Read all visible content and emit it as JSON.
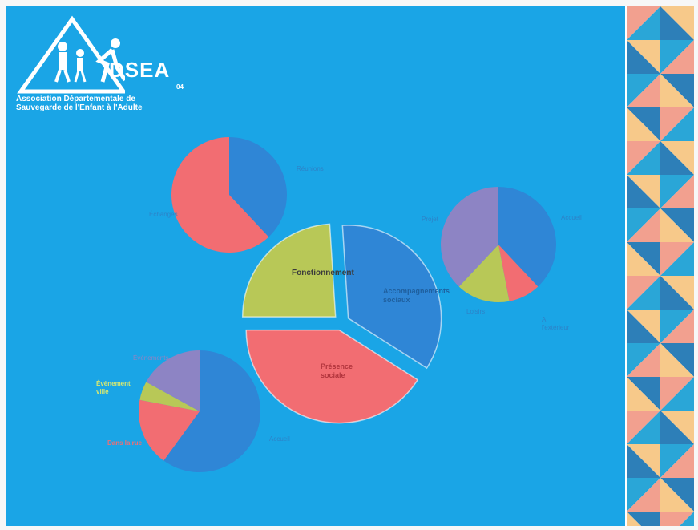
{
  "logo": {
    "name": "DSEA",
    "number": "04",
    "line1": "Association Départementale de",
    "line2": "Sauvegarde de l'Enfant à l'Adulte"
  },
  "colors": {
    "background": "#1aa5e6",
    "dark_blue": "#2f86d6",
    "salmon": "#f26d72",
    "green": "#b8c857",
    "purple": "#8d84c4",
    "pattern": [
      "#f2a08f",
      "#f7c98a",
      "#2aa6d7",
      "#2d7fb8"
    ]
  },
  "chart_data": [
    {
      "type": "pie",
      "labels": [
        "Fonctionnement",
        "Accompagnements sociaux",
        "Présence sociale"
      ],
      "values": [
        24,
        35,
        41
      ],
      "exploded": true
    },
    {
      "type": "pie",
      "labels": [
        "Réunions",
        "Échanges"
      ],
      "values": [
        38,
        62
      ]
    },
    {
      "type": "pie",
      "labels": [
        "Accueil",
        "A l'extérieur",
        "Loisirs",
        "Projet"
      ],
      "values": [
        38,
        9,
        15,
        38
      ]
    },
    {
      "type": "pie",
      "labels": [
        "Accueil",
        "Dans la rue",
        "Évènement ville",
        "Événements"
      ],
      "values": [
        60,
        18,
        5,
        17
      ]
    }
  ]
}
